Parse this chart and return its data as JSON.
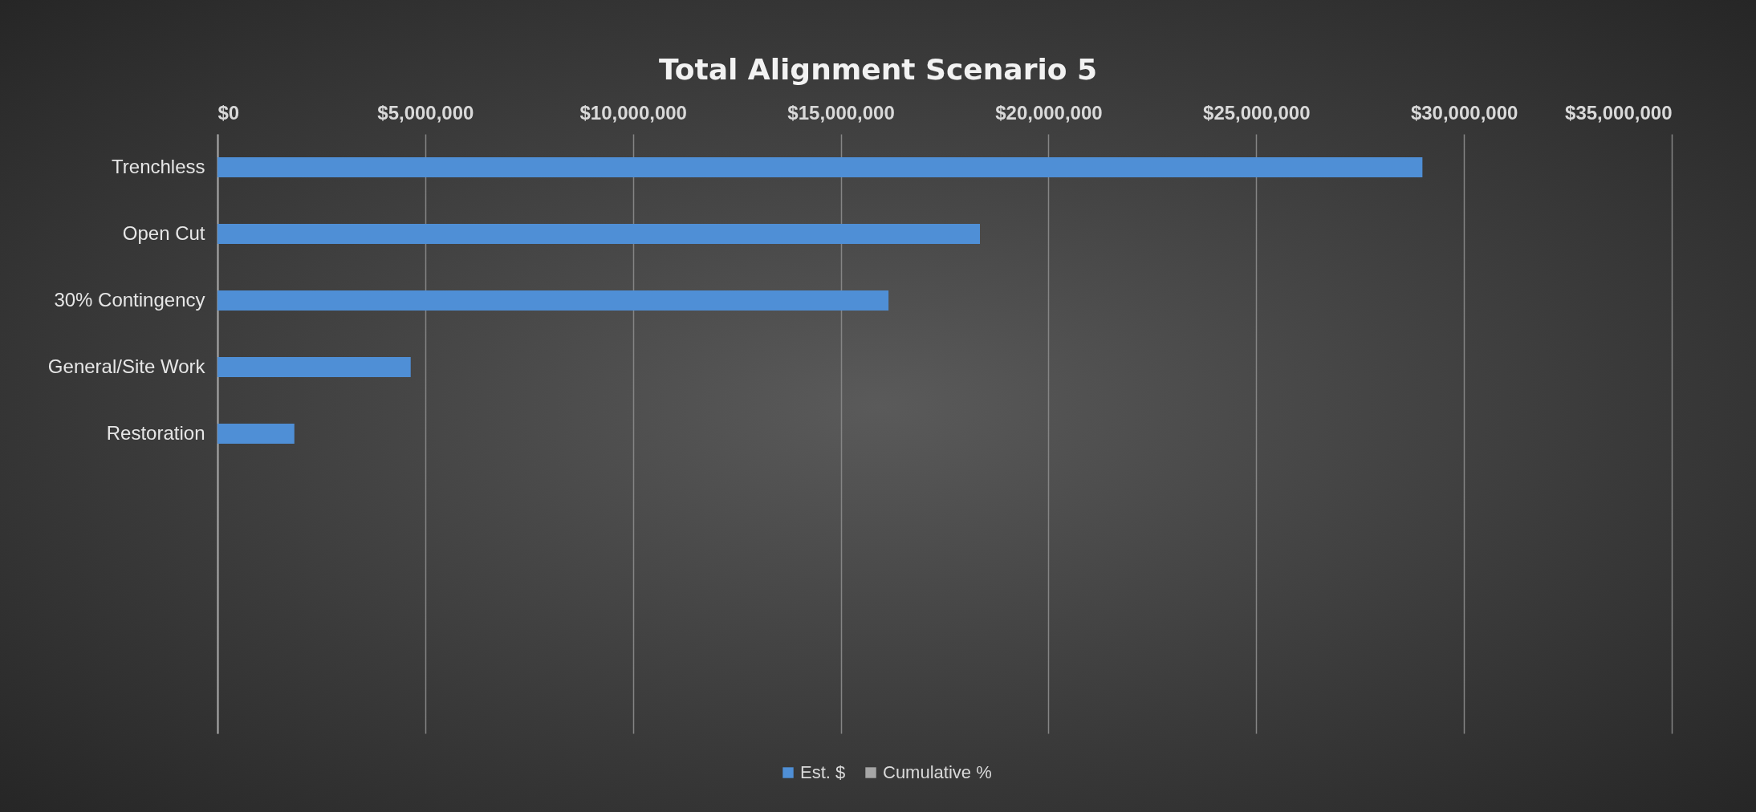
{
  "chart_data": {
    "type": "bar",
    "orientation": "horizontal",
    "title": "Total Alignment Scenario 5",
    "categories": [
      "Trenchless",
      "Open Cut",
      "30% Contingency",
      "General/Site Work",
      "Restoration",
      null,
      null,
      null,
      null
    ],
    "series": [
      {
        "name": "Est. $",
        "color": "#4f8fd6",
        "values": [
          29000000,
          18350000,
          16150000,
          4650000,
          1850000,
          null,
          null,
          null,
          null
        ]
      },
      {
        "name": "Cumulative %",
        "color": "#a6a6a6",
        "values": [
          null,
          null,
          null,
          null,
          null,
          null,
          null,
          null,
          null
        ]
      }
    ],
    "xlim": [
      0,
      35000000
    ],
    "xticks": [
      {
        "value": 0,
        "label": "$0"
      },
      {
        "value": 5000000,
        "label": "$5,000,000"
      },
      {
        "value": 10000000,
        "label": "$10,000,000"
      },
      {
        "value": 15000000,
        "label": "$15,000,000"
      },
      {
        "value": 20000000,
        "label": "$20,000,000"
      },
      {
        "value": 25000000,
        "label": "$25,000,000"
      },
      {
        "value": 30000000,
        "label": "$30,000,000"
      },
      {
        "value": 35000000,
        "label": "$35,000,000"
      }
    ],
    "grid": "x",
    "legend": "bottom"
  }
}
